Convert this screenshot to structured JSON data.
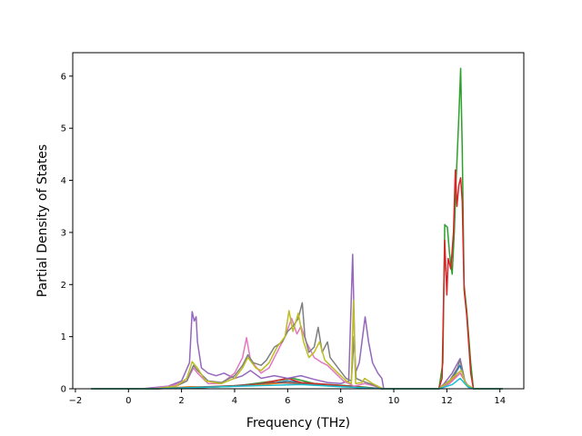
{
  "chart_data": {
    "type": "line",
    "title": "",
    "xlabel": "Frequency (THz)",
    "ylabel": "Partial Density of States",
    "xlim": [
      -2.1,
      14.9
    ],
    "ylim": [
      0,
      6.45
    ],
    "xticks": [
      -2,
      0,
      2,
      4,
      6,
      8,
      10,
      12,
      14
    ],
    "yticks": [
      0,
      1,
      2,
      3,
      4,
      5,
      6
    ],
    "grid": false,
    "legend": "none",
    "series": [
      {
        "color": "#1f77b4",
        "points": [
          [
            -1.4,
            0
          ],
          [
            0.5,
            0
          ],
          [
            2.0,
            0.02
          ],
          [
            3.0,
            0.03
          ],
          [
            4.0,
            0.05
          ],
          [
            5.0,
            0.08
          ],
          [
            6.0,
            0.15
          ],
          [
            6.5,
            0.12
          ],
          [
            7.5,
            0.08
          ],
          [
            8.4,
            0.05
          ],
          [
            9.0,
            0.02
          ],
          [
            9.6,
            0
          ],
          [
            11.7,
            0
          ],
          [
            11.9,
            0.08
          ],
          [
            12.2,
            0.2
          ],
          [
            12.5,
            0.45
          ],
          [
            12.7,
            0.1
          ],
          [
            13.0,
            0
          ],
          [
            14.1,
            0
          ]
        ]
      },
      {
        "color": "#ff7f0e",
        "points": [
          [
            -1.4,
            0
          ],
          [
            1.0,
            0
          ],
          [
            2.3,
            0.04
          ],
          [
            3.0,
            0.03
          ],
          [
            4.5,
            0.06
          ],
          [
            6.0,
            0.12
          ],
          [
            7.0,
            0.08
          ],
          [
            8.5,
            0.04
          ],
          [
            9.6,
            0
          ],
          [
            11.7,
            0
          ],
          [
            12.0,
            0.1
          ],
          [
            12.5,
            0.3
          ],
          [
            12.8,
            0.05
          ],
          [
            13.0,
            0
          ],
          [
            14.1,
            0
          ]
        ]
      },
      {
        "color": "#2ca02c",
        "points": [
          [
            -1.4,
            0
          ],
          [
            1.0,
            0
          ],
          [
            2.5,
            0.02
          ],
          [
            4.0,
            0.05
          ],
          [
            5.5,
            0.15
          ],
          [
            6.2,
            0.2
          ],
          [
            7.0,
            0.1
          ],
          [
            8.5,
            0.05
          ],
          [
            9.6,
            0
          ],
          [
            11.7,
            0
          ],
          [
            11.85,
            0.5
          ],
          [
            11.92,
            3.15
          ],
          [
            12.02,
            3.1
          ],
          [
            12.1,
            2.6
          ],
          [
            12.2,
            2.2
          ],
          [
            12.28,
            3.0
          ],
          [
            12.35,
            4.0
          ],
          [
            12.45,
            5.2
          ],
          [
            12.52,
            6.15
          ],
          [
            12.58,
            4.6
          ],
          [
            12.65,
            2.0
          ],
          [
            12.75,
            1.5
          ],
          [
            12.9,
            0.5
          ],
          [
            13.0,
            0
          ],
          [
            14.1,
            0
          ]
        ]
      },
      {
        "color": "#d62728",
        "points": [
          [
            -1.4,
            0
          ],
          [
            1.0,
            0
          ],
          [
            2.5,
            0.02
          ],
          [
            4.0,
            0.05
          ],
          [
            5.0,
            0.1
          ],
          [
            6.0,
            0.2
          ],
          [
            6.5,
            0.12
          ],
          [
            7.5,
            0.08
          ],
          [
            8.5,
            0.04
          ],
          [
            9.6,
            0
          ],
          [
            11.7,
            0
          ],
          [
            11.82,
            0.2
          ],
          [
            11.92,
            2.85
          ],
          [
            12.0,
            1.8
          ],
          [
            12.05,
            2.5
          ],
          [
            12.15,
            2.3
          ],
          [
            12.25,
            3.0
          ],
          [
            12.32,
            4.2
          ],
          [
            12.38,
            3.5
          ],
          [
            12.45,
            3.9
          ],
          [
            12.52,
            4.05
          ],
          [
            12.58,
            3.6
          ],
          [
            12.65,
            1.9
          ],
          [
            12.75,
            1.4
          ],
          [
            12.9,
            0.3
          ],
          [
            13.0,
            0
          ],
          [
            14.1,
            0
          ]
        ]
      },
      {
        "color": "#9467bd",
        "points": [
          [
            -1.4,
            0
          ],
          [
            0.5,
            0
          ],
          [
            1.5,
            0.05
          ],
          [
            2.0,
            0.15
          ],
          [
            2.3,
            0.5
          ],
          [
            2.4,
            1.48
          ],
          [
            2.48,
            1.3
          ],
          [
            2.55,
            1.38
          ],
          [
            2.6,
            0.9
          ],
          [
            2.75,
            0.4
          ],
          [
            3.0,
            0.3
          ],
          [
            3.3,
            0.25
          ],
          [
            3.6,
            0.3
          ],
          [
            3.8,
            0.25
          ],
          [
            4.0,
            0.2
          ],
          [
            4.3,
            0.25
          ],
          [
            4.6,
            0.35
          ],
          [
            5.0,
            0.2
          ],
          [
            5.5,
            0.25
          ],
          [
            6.0,
            0.2
          ],
          [
            6.5,
            0.25
          ],
          [
            7.0,
            0.18
          ],
          [
            7.5,
            0.12
          ],
          [
            8.0,
            0.1
          ],
          [
            8.3,
            0.15
          ],
          [
            8.45,
            2.58
          ],
          [
            8.55,
            0.3
          ],
          [
            8.7,
            0.5
          ],
          [
            8.85,
            1.1
          ],
          [
            8.92,
            1.38
          ],
          [
            9.05,
            0.9
          ],
          [
            9.2,
            0.5
          ],
          [
            9.4,
            0.3
          ],
          [
            9.55,
            0.2
          ],
          [
            9.62,
            0
          ],
          [
            11.7,
            0
          ],
          [
            11.9,
            0.1
          ],
          [
            12.2,
            0.3
          ],
          [
            12.5,
            0.58
          ],
          [
            12.7,
            0.1
          ],
          [
            13.0,
            0
          ],
          [
            14.1,
            0
          ]
        ]
      },
      {
        "color": "#8c564b",
        "points": [
          [
            -1.4,
            0
          ],
          [
            1.0,
            0
          ],
          [
            2.5,
            0.03
          ],
          [
            4.0,
            0.06
          ],
          [
            5.5,
            0.12
          ],
          [
            6.5,
            0.1
          ],
          [
            7.5,
            0.06
          ],
          [
            8.5,
            0.03
          ],
          [
            9.6,
            0
          ],
          [
            11.7,
            0
          ],
          [
            12.1,
            0.1
          ],
          [
            12.5,
            0.3
          ],
          [
            12.8,
            0.05
          ],
          [
            13.0,
            0
          ],
          [
            14.1,
            0
          ]
        ]
      },
      {
        "color": "#e377c2",
        "points": [
          [
            -1.4,
            0
          ],
          [
            0.8,
            0
          ],
          [
            1.6,
            0.05
          ],
          [
            2.2,
            0.15
          ],
          [
            2.45,
            0.4
          ],
          [
            2.6,
            0.3
          ],
          [
            3.0,
            0.1
          ],
          [
            3.5,
            0.1
          ],
          [
            4.0,
            0.3
          ],
          [
            4.3,
            0.6
          ],
          [
            4.45,
            0.98
          ],
          [
            4.6,
            0.55
          ],
          [
            5.0,
            0.3
          ],
          [
            5.3,
            0.4
          ],
          [
            5.6,
            0.7
          ],
          [
            5.9,
            1.0
          ],
          [
            6.15,
            1.35
          ],
          [
            6.35,
            1.05
          ],
          [
            6.5,
            1.2
          ],
          [
            6.7,
            0.9
          ],
          [
            7.0,
            0.6
          ],
          [
            7.3,
            0.5
          ],
          [
            7.5,
            0.45
          ],
          [
            7.8,
            0.3
          ],
          [
            8.1,
            0.15
          ],
          [
            8.3,
            0.1
          ],
          [
            8.5,
            0.05
          ],
          [
            8.9,
            0.1
          ],
          [
            9.3,
            0.05
          ],
          [
            9.6,
            0
          ],
          [
            11.7,
            0
          ],
          [
            12.1,
            0.1
          ],
          [
            12.5,
            0.3
          ],
          [
            12.8,
            0.05
          ],
          [
            13.0,
            0
          ],
          [
            14.1,
            0
          ]
        ]
      },
      {
        "color": "#7f7f7f",
        "points": [
          [
            -1.4,
            0
          ],
          [
            1.0,
            0
          ],
          [
            1.8,
            0.05
          ],
          [
            2.2,
            0.15
          ],
          [
            2.45,
            0.45
          ],
          [
            2.6,
            0.35
          ],
          [
            3.0,
            0.15
          ],
          [
            3.5,
            0.12
          ],
          [
            4.0,
            0.25
          ],
          [
            4.3,
            0.45
          ],
          [
            4.5,
            0.65
          ],
          [
            4.7,
            0.5
          ],
          [
            5.0,
            0.45
          ],
          [
            5.2,
            0.55
          ],
          [
            5.5,
            0.8
          ],
          [
            5.8,
            0.9
          ],
          [
            6.0,
            1.1
          ],
          [
            6.2,
            1.2
          ],
          [
            6.4,
            1.35
          ],
          [
            6.55,
            1.65
          ],
          [
            6.65,
            1.0
          ],
          [
            6.8,
            0.7
          ],
          [
            7.0,
            0.8
          ],
          [
            7.15,
            1.18
          ],
          [
            7.3,
            0.7
          ],
          [
            7.5,
            0.9
          ],
          [
            7.6,
            0.6
          ],
          [
            7.9,
            0.4
          ],
          [
            8.2,
            0.2
          ],
          [
            8.4,
            0.15
          ],
          [
            8.5,
            1.0
          ],
          [
            8.58,
            0.2
          ],
          [
            8.8,
            0.15
          ],
          [
            9.2,
            0.08
          ],
          [
            9.6,
            0
          ],
          [
            11.7,
            0
          ],
          [
            12.1,
            0.15
          ],
          [
            12.4,
            0.4
          ],
          [
            12.5,
            0.55
          ],
          [
            12.7,
            0.1
          ],
          [
            13.0,
            0
          ],
          [
            14.1,
            0
          ]
        ]
      },
      {
        "color": "#bcbd22",
        "points": [
          [
            -1.4,
            0
          ],
          [
            1.0,
            0
          ],
          [
            1.8,
            0.05
          ],
          [
            2.2,
            0.2
          ],
          [
            2.4,
            0.52
          ],
          [
            2.6,
            0.4
          ],
          [
            2.9,
            0.15
          ],
          [
            3.5,
            0.1
          ],
          [
            4.0,
            0.2
          ],
          [
            4.3,
            0.4
          ],
          [
            4.5,
            0.6
          ],
          [
            4.8,
            0.4
          ],
          [
            5.0,
            0.35
          ],
          [
            5.3,
            0.5
          ],
          [
            5.6,
            0.8
          ],
          [
            5.9,
            1.0
          ],
          [
            6.05,
            1.5
          ],
          [
            6.2,
            1.1
          ],
          [
            6.4,
            1.45
          ],
          [
            6.6,
            0.9
          ],
          [
            6.8,
            0.6
          ],
          [
            7.0,
            0.7
          ],
          [
            7.2,
            0.9
          ],
          [
            7.4,
            0.55
          ],
          [
            7.6,
            0.45
          ],
          [
            7.9,
            0.3
          ],
          [
            8.2,
            0.15
          ],
          [
            8.4,
            0.1
          ],
          [
            8.48,
            1.7
          ],
          [
            8.56,
            0.1
          ],
          [
            8.8,
            0.12
          ],
          [
            8.9,
            0.2
          ],
          [
            9.2,
            0.1
          ],
          [
            9.6,
            0
          ],
          [
            11.7,
            0
          ],
          [
            12.1,
            0.15
          ],
          [
            12.4,
            0.3
          ],
          [
            12.55,
            0.35
          ],
          [
            12.7,
            0.1
          ],
          [
            13.0,
            0
          ],
          [
            14.1,
            0
          ]
        ]
      },
      {
        "color": "#17becf",
        "points": [
          [
            -1.4,
            0
          ],
          [
            1.0,
            0
          ],
          [
            3.0,
            0.03
          ],
          [
            5.0,
            0.06
          ],
          [
            6.5,
            0.08
          ],
          [
            8.0,
            0.04
          ],
          [
            9.6,
            0
          ],
          [
            11.7,
            0
          ],
          [
            12.2,
            0.08
          ],
          [
            12.5,
            0.2
          ],
          [
            12.8,
            0.03
          ],
          [
            13.0,
            0
          ],
          [
            14.1,
            0
          ]
        ]
      }
    ]
  }
}
